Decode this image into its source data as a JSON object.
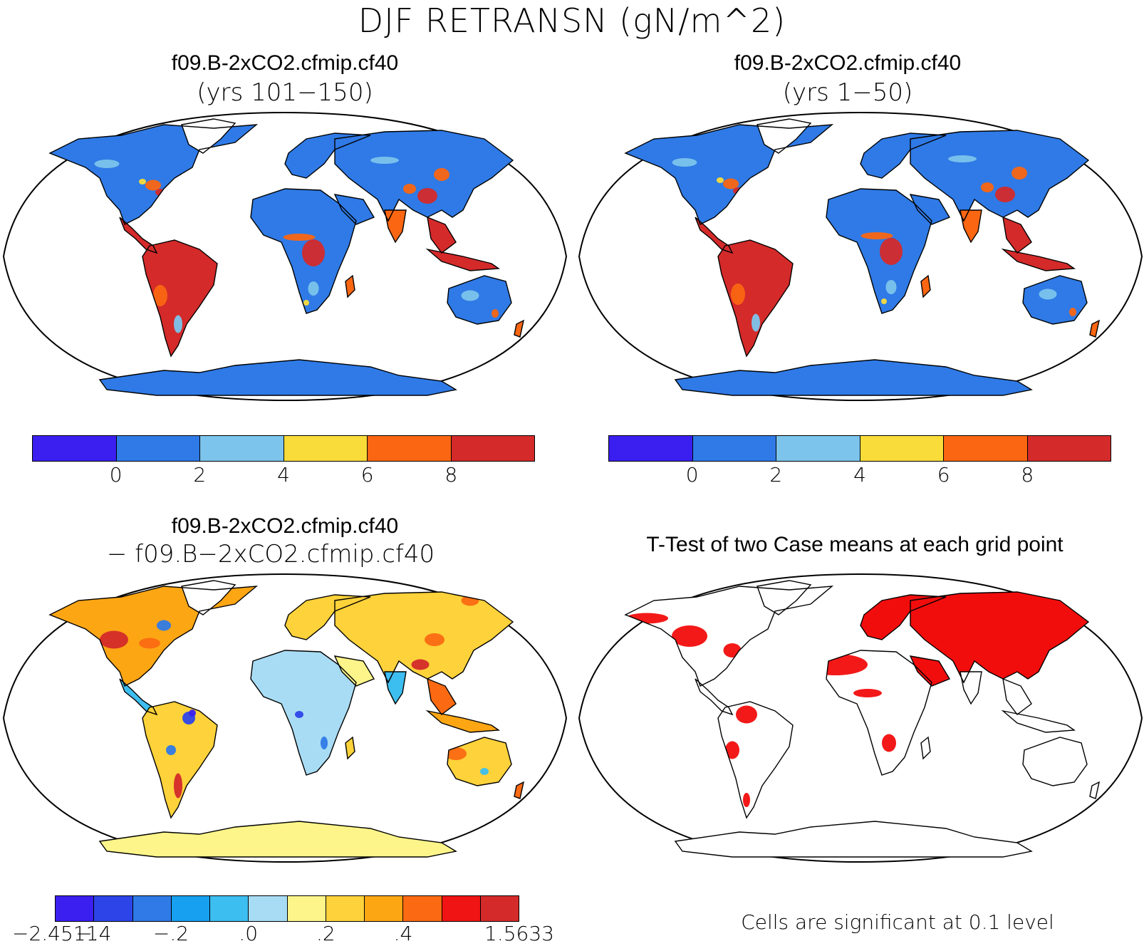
{
  "figure": {
    "title": "DJF RETRANSN (gN/m^2)"
  },
  "panels": {
    "top_left": {
      "title": "f09.B-2xCO2.cfmip.cf40",
      "subtitle": "(yrs 101−150)"
    },
    "top_right": {
      "title": "f09.B-2xCO2.cfmip.cf40",
      "subtitle": "(yrs 1−50)"
    },
    "bottom_left": {
      "title": "f09.B-2xCO2.cfmip.cf40",
      "subtitle": "− f09.B−2xCO2.cfmip.cf40"
    },
    "bottom_right": {
      "title": "T-Test of two Case means at each grid point",
      "note": "Cells are significant at 0.1 level"
    }
  },
  "colorbars": {
    "absolute": {
      "colors": [
        "#3a1ff0",
        "#2f7ae6",
        "#7cc4ec",
        "#f9dc3a",
        "#fa6612",
        "#d42a2a"
      ],
      "labels": [
        "0",
        "2",
        "4",
        "6",
        "8"
      ]
    },
    "difference": {
      "colors": [
        "#3a1ff0",
        "#2d45e8",
        "#2f7ae6",
        "#17a0f0",
        "#3dbef0",
        "#a8dcf4",
        "#fdf58a",
        "#fdd23a",
        "#fda614",
        "#fb6a12",
        "#f01414",
        "#d42a2a"
      ],
      "labels": [
        "−2.4511",
        "−.4",
        "−.2",
        ".0",
        ".2",
        ".4",
        "1.5633"
      ]
    }
  },
  "map_colors": {
    "ocean": "#ffffff",
    "coast": "#000000",
    "significance": "#f20d0d",
    "antarctica_abs": "#2f7ae6",
    "antarctica_diff": "#fdf58a"
  }
}
